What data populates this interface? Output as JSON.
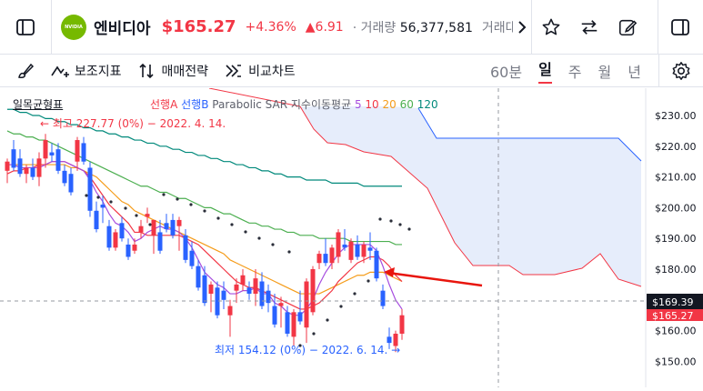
{
  "header": {
    "ticker_name": "엔비디아",
    "price": "$165.27",
    "change_pct": "+4.36%",
    "change_abs": "▲6.91",
    "volume_label": "거래량",
    "volume_value": "56,377,581",
    "trade_amount_label": "거래대금",
    "logo_text": "NVIDIA"
  },
  "toolbar": {
    "indicators_label": "보조지표",
    "strategy_label": "매매전략",
    "compare_label": "비교차트",
    "timeframes": [
      "60분",
      "일",
      "주",
      "월",
      "년"
    ],
    "active_timeframe": "일"
  },
  "legend": {
    "ichimoku": "일목균형표",
    "span_a": "선행A",
    "span_b": "선행B",
    "psar": "Parabolic SAR",
    "ma_label": "지수이동평균",
    "ma_periods": [
      "5",
      "10",
      "20",
      "60",
      "120"
    ]
  },
  "annotations": {
    "high": "← 최고 227.77 (0%) − 2022. 4. 14.",
    "low": "최저 154.12 (0%) − 2022. 6. 14. →"
  },
  "price_axis": {
    "ticks": [
      "$230.00",
      "$220.00",
      "$210.00",
      "$200.00",
      "$190.00",
      "$180.00",
      "$170.00",
      "$160.00",
      "$150.00"
    ],
    "crosshair_label": "$169.39",
    "last_label": "$165.27"
  },
  "colors": {
    "up": "#f23645",
    "down": "#2962ff",
    "ma5": "#a64ddf",
    "ma10": "#f23645",
    "ma20": "#f59c1a",
    "ma60": "#4caf50",
    "ma120": "#00897b",
    "cloud": "#e3ebfb"
  },
  "chart_data": {
    "type": "candlestick",
    "y_range": [
      145,
      233
    ],
    "candles": [
      {
        "o": 212,
        "h": 216,
        "l": 208,
        "c": 215
      },
      {
        "o": 219,
        "h": 222,
        "l": 212,
        "c": 213
      },
      {
        "o": 216,
        "h": 219,
        "l": 210,
        "c": 211
      },
      {
        "o": 211,
        "h": 214,
        "l": 208,
        "c": 213
      },
      {
        "o": 213,
        "h": 216,
        "l": 209,
        "c": 210
      },
      {
        "o": 210,
        "h": 218,
        "l": 207,
        "c": 216
      },
      {
        "o": 216,
        "h": 224,
        "l": 213,
        "c": 222
      },
      {
        "o": 218,
        "h": 221,
        "l": 215,
        "c": 217
      },
      {
        "o": 219,
        "h": 221,
        "l": 211,
        "c": 212
      },
      {
        "o": 212,
        "h": 214,
        "l": 207,
        "c": 208
      },
      {
        "o": 211,
        "h": 213,
        "l": 204,
        "c": 205
      },
      {
        "o": 215,
        "h": 223,
        "l": 212,
        "c": 222
      },
      {
        "o": 221,
        "h": 223,
        "l": 214,
        "c": 215
      },
      {
        "o": 213,
        "h": 215,
        "l": 197,
        "c": 199
      },
      {
        "o": 199,
        "h": 202,
        "l": 192,
        "c": 193
      },
      {
        "o": 201,
        "h": 204,
        "l": 195,
        "c": 200
      },
      {
        "o": 194,
        "h": 196,
        "l": 186,
        "c": 187
      },
      {
        "o": 187,
        "h": 193,
        "l": 186,
        "c": 192
      },
      {
        "o": 195,
        "h": 197,
        "l": 189,
        "c": 190
      },
      {
        "o": 188,
        "h": 190,
        "l": 183,
        "c": 184
      },
      {
        "o": 186,
        "h": 190,
        "l": 185,
        "c": 188
      },
      {
        "o": 192,
        "h": 196,
        "l": 190,
        "c": 194
      },
      {
        "o": 197,
        "h": 200,
        "l": 195,
        "c": 198
      },
      {
        "o": 191,
        "h": 196,
        "l": 185,
        "c": 196
      },
      {
        "o": 192,
        "h": 196,
        "l": 185,
        "c": 186
      },
      {
        "o": 195,
        "h": 198,
        "l": 192,
        "c": 193
      },
      {
        "o": 196,
        "h": 198,
        "l": 190,
        "c": 191
      },
      {
        "o": 194,
        "h": 197,
        "l": 186,
        "c": 196
      },
      {
        "o": 191,
        "h": 193,
        "l": 182,
        "c": 183
      },
      {
        "o": 186,
        "h": 189,
        "l": 180,
        "c": 181
      },
      {
        "o": 181,
        "h": 183,
        "l": 173,
        "c": 174
      },
      {
        "o": 178,
        "h": 181,
        "l": 168,
        "c": 169
      },
      {
        "o": 172,
        "h": 176,
        "l": 166,
        "c": 175
      },
      {
        "o": 174,
        "h": 176,
        "l": 164,
        "c": 165
      },
      {
        "o": 173,
        "h": 176,
        "l": 167,
        "c": 170
      },
      {
        "o": 165,
        "h": 170,
        "l": 158,
        "c": 168
      },
      {
        "o": 173,
        "h": 177,
        "l": 169,
        "c": 175
      },
      {
        "o": 175,
        "h": 180,
        "l": 173,
        "c": 178
      },
      {
        "o": 174,
        "h": 176,
        "l": 170,
        "c": 172
      },
      {
        "o": 172,
        "h": 180,
        "l": 168,
        "c": 177
      },
      {
        "o": 176,
        "h": 179,
        "l": 167,
        "c": 168
      },
      {
        "o": 173,
        "h": 175,
        "l": 166,
        "c": 169
      },
      {
        "o": 168,
        "h": 172,
        "l": 161,
        "c": 162
      },
      {
        "o": 168,
        "h": 171,
        "l": 161,
        "c": 169
      },
      {
        "o": 166,
        "h": 168,
        "l": 158,
        "c": 159
      },
      {
        "o": 158,
        "h": 167,
        "l": 155,
        "c": 166
      },
      {
        "o": 166,
        "h": 173,
        "l": 162,
        "c": 163
      },
      {
        "o": 161,
        "h": 177,
        "l": 156,
        "c": 176
      },
      {
        "o": 166,
        "h": 181,
        "l": 165,
        "c": 180
      },
      {
        "o": 182,
        "h": 186,
        "l": 180,
        "c": 185
      },
      {
        "o": 185,
        "h": 190,
        "l": 181,
        "c": 182
      },
      {
        "o": 182,
        "h": 188,
        "l": 180,
        "c": 187
      },
      {
        "o": 184,
        "h": 193,
        "l": 182,
        "c": 192
      },
      {
        "o": 188,
        "h": 193,
        "l": 186,
        "c": 187
      },
      {
        "o": 183,
        "h": 190,
        "l": 182,
        "c": 189
      },
      {
        "o": 188,
        "h": 191,
        "l": 183,
        "c": 184
      },
      {
        "o": 184,
        "h": 189,
        "l": 182,
        "c": 188
      },
      {
        "o": 187,
        "h": 192,
        "l": 183,
        "c": 186
      },
      {
        "o": 186,
        "h": 187,
        "l": 176,
        "c": 177
      },
      {
        "o": 173,
        "h": 175,
        "l": 167,
        "c": 168
      },
      {
        "o": 158,
        "h": 161,
        "l": 154,
        "c": 156
      },
      {
        "o": 155,
        "h": 160,
        "l": 153,
        "c": 159
      },
      {
        "o": 159,
        "h": 167,
        "l": 157,
        "c": 165
      }
    ],
    "ma5": [
      214,
      214,
      213,
      213,
      213,
      213,
      214,
      215,
      215,
      215,
      214,
      213,
      212,
      209,
      205,
      202,
      198,
      195,
      194,
      192,
      189,
      190,
      192,
      193,
      194,
      193,
      193,
      192,
      190,
      187,
      183,
      179,
      177,
      175,
      174,
      172,
      172,
      173,
      173,
      174,
      172,
      172,
      169,
      168,
      166,
      165,
      165,
      167,
      170,
      175,
      179,
      182,
      185,
      187,
      188,
      188,
      188,
      188,
      186,
      181,
      175,
      170,
      167
    ],
    "ma10": [
      211,
      212,
      212,
      213,
      213,
      214,
      214,
      215,
      215,
      215,
      214,
      213,
      212,
      210,
      207,
      204,
      201,
      199,
      197,
      195,
      192,
      192,
      191,
      191,
      191,
      191,
      191,
      191,
      190,
      189,
      188,
      186,
      184,
      182,
      180,
      178,
      176,
      175,
      174,
      174,
      173,
      172,
      171,
      170,
      169,
      168,
      167,
      167,
      168,
      169,
      171,
      173,
      176,
      178,
      180,
      182,
      183,
      184,
      184,
      183,
      181,
      178,
      176
    ],
    "ma20": [
      214,
      214,
      214,
      214,
      214,
      214,
      214,
      214,
      214,
      214,
      213,
      213,
      212,
      211,
      210,
      208,
      206,
      204,
      202,
      201,
      199,
      198,
      197,
      196,
      195,
      194,
      193,
      192,
      191,
      190,
      189,
      188,
      187,
      186,
      185,
      183,
      182,
      181,
      180,
      179,
      178,
      177,
      176,
      175,
      174,
      173,
      172,
      172,
      172,
      172,
      173,
      174,
      175,
      176,
      177,
      178,
      178,
      179,
      179,
      179,
      178,
      177,
      176
    ],
    "ma60": [
      225,
      224,
      224,
      223,
      223,
      222,
      222,
      221,
      220,
      219,
      218,
      217,
      216,
      215,
      214,
      213,
      212,
      211,
      210,
      209,
      208,
      207,
      207,
      206,
      205,
      205,
      204,
      203,
      203,
      202,
      201,
      200,
      200,
      199,
      198,
      198,
      197,
      196,
      195,
      195,
      194,
      194,
      193,
      193,
      192,
      192,
      191,
      191,
      191,
      190,
      190,
      190,
      190,
      190,
      189,
      189,
      189,
      189,
      189,
      189,
      189,
      188,
      188
    ],
    "ma120": [
      232,
      232,
      231,
      231,
      230,
      230,
      229,
      229,
      228,
      228,
      227,
      227,
      226,
      226,
      225,
      225,
      224,
      224,
      223,
      223,
      222,
      222,
      221,
      221,
      220,
      220,
      219,
      219,
      218,
      218,
      217,
      217,
      216,
      216,
      215,
      215,
      214,
      214,
      213,
      213,
      212,
      212,
      211,
      211,
      210,
      210,
      210,
      209,
      209,
      209,
      209,
      208,
      208,
      208,
      208,
      208,
      207,
      207,
      207,
      207,
      207,
      207,
      207
    ]
  }
}
